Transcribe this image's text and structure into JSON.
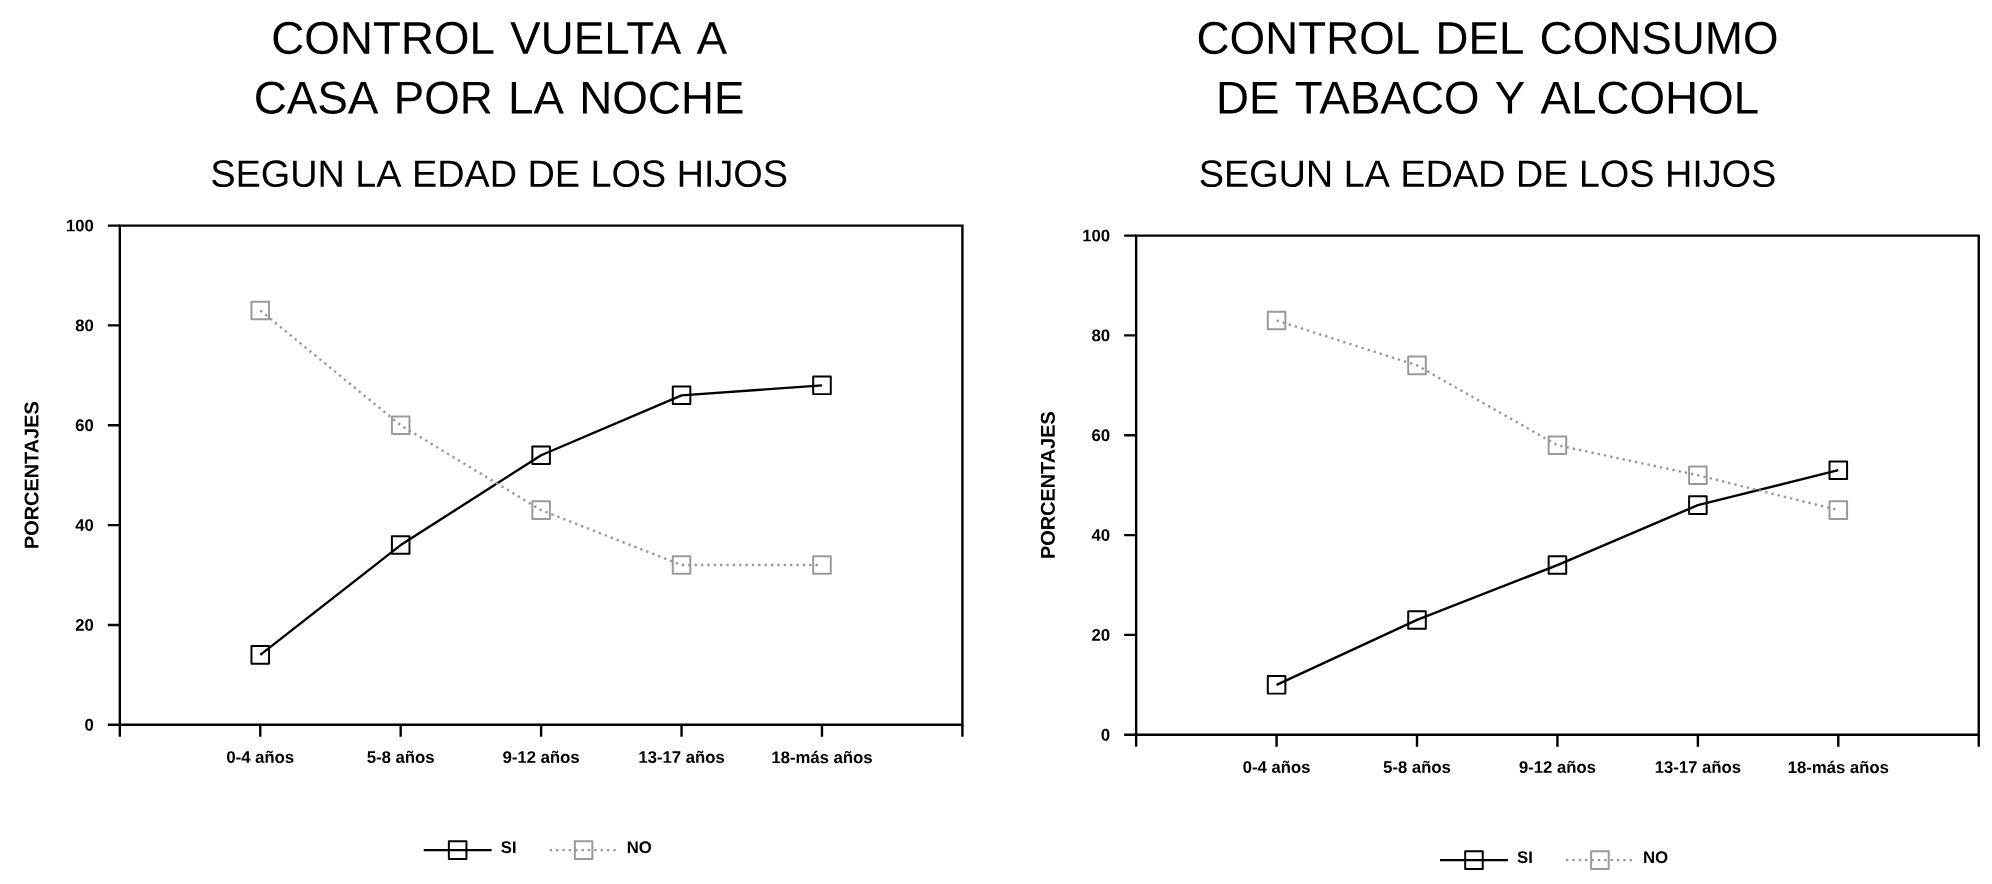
{
  "chart_data": [
    {
      "type": "line",
      "title": "CONTROL VUELTA A CASA POR LA NOCHE",
      "subtitle": "SEGUN LA EDAD DE LOS HIJOS",
      "ylabel": "PORCENTAJES",
      "categories": [
        null,
        "0-4 años",
        "5-8 años",
        "9-12 años",
        "13-17 años",
        "18-más años",
        null
      ],
      "ylim": [
        0,
        100
      ],
      "yticks": [
        0,
        20,
        40,
        60,
        80,
        100
      ],
      "legend": "bottom",
      "marker": "square",
      "series": [
        {
          "name": "SI",
          "color": "#000000",
          "line_style": "solid",
          "values": [
            null,
            14,
            36,
            54,
            66,
            68,
            null
          ]
        },
        {
          "name": "NO",
          "color": "#999999",
          "line_style": "dotted",
          "values": [
            null,
            83,
            60,
            43,
            32,
            32,
            null
          ]
        }
      ]
    },
    {
      "type": "line",
      "title": "CONTROL DEL CONSUMO DE TABACO Y ALCOHOL",
      "subtitle": "SEGUN LA EDAD DE LOS HIJOS",
      "ylabel": "PORCENTAJES",
      "categories": [
        null,
        "0-4 años",
        "5-8 años",
        "9-12 años",
        "13-17 años",
        "18-más años",
        null
      ],
      "ylim": [
        0,
        100
      ],
      "yticks": [
        0,
        20,
        40,
        60,
        80,
        100
      ],
      "legend": "bottom",
      "marker": "square",
      "series": [
        {
          "name": "SI",
          "color": "#000000",
          "line_style": "solid",
          "values": [
            null,
            10,
            23,
            34,
            46,
            53,
            null
          ]
        },
        {
          "name": "NO",
          "color": "#999999",
          "line_style": "dotted",
          "values": [
            null,
            83,
            74,
            58,
            52,
            45,
            null
          ]
        }
      ]
    }
  ]
}
